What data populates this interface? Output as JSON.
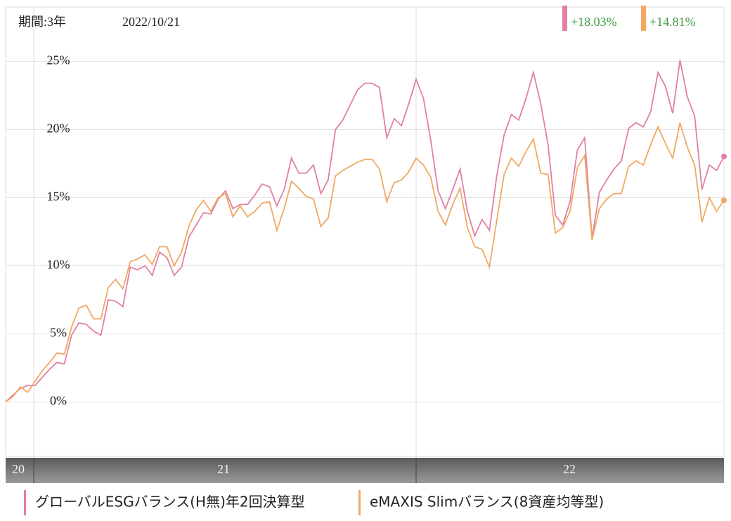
{
  "chart_data": {
    "type": "line",
    "period": "期間:3年",
    "date": "2022/10/21",
    "period_labels": [
      "20",
      "21",
      "22"
    ],
    "ylim": [
      -4,
      29
    ],
    "yticks": [
      {
        "value": 0,
        "label": "0%"
      },
      {
        "value": 5,
        "label": "5%"
      },
      {
        "value": 10,
        "label": "10%"
      },
      {
        "value": 15,
        "label": "15%"
      },
      {
        "value": 20,
        "label": "20%"
      },
      {
        "value": 25,
        "label": "25%"
      }
    ],
    "grid": true,
    "series": [
      {
        "name": "グローバルESGバランス(H無)年2回決算型",
        "color": "#e27fa5",
        "end_label": "+18.03%",
        "values": [
          0,
          0.5,
          1.0,
          1.2,
          1.2,
          1.8,
          2.4,
          2.9,
          2.8,
          4.9,
          5.8,
          5.7,
          5.2,
          4.9,
          7.5,
          7.4,
          7.0,
          9.9,
          9.7,
          10.0,
          9.3,
          11.0,
          10.6,
          9.3,
          9.9,
          12.1,
          13.0,
          13.9,
          13.8,
          14.9,
          15.5,
          14.2,
          14.5,
          14.5,
          15.2,
          16.0,
          15.8,
          14.4,
          15.6,
          17.9,
          16.8,
          16.8,
          17.4,
          15.3,
          16.3,
          20.0,
          20.7,
          21.8,
          22.9,
          23.4,
          23.4,
          23.1,
          19.4,
          20.8,
          20.3,
          21.9,
          23.7,
          22.3,
          19.2,
          15.5,
          14.2,
          15.6,
          17.1,
          14.0,
          12.2,
          13.4,
          12.6,
          16.6,
          19.6,
          21.1,
          20.7,
          22.3,
          24.2,
          21.9,
          18.9,
          13.7,
          13.0,
          14.7,
          18.5,
          19.4,
          12.0,
          15.4,
          16.3,
          17.1,
          17.7,
          20.1,
          20.5,
          20.2,
          21.3,
          24.2,
          23.2,
          21.2,
          25.1,
          22.4,
          21.0,
          15.6,
          17.4,
          17.0,
          18.03
        ]
      },
      {
        "name": "eMAXIS Slimバランス(8資産均等型)",
        "color": "#f0a862",
        "end_label": "+14.81%",
        "values": [
          0,
          0.4,
          1.1,
          0.7,
          1.5,
          2.3,
          2.9,
          3.6,
          3.5,
          5.5,
          6.9,
          7.1,
          6.1,
          6.1,
          8.4,
          9.0,
          8.3,
          10.3,
          10.5,
          10.8,
          10.1,
          11.4,
          11.4,
          10.0,
          11.0,
          12.9,
          14.1,
          14.8,
          14.0,
          15.0,
          15.3,
          13.6,
          14.4,
          13.6,
          14.0,
          14.6,
          14.7,
          12.6,
          14.2,
          16.2,
          15.7,
          15.1,
          14.9,
          12.9,
          13.5,
          16.6,
          17.0,
          17.3,
          17.6,
          17.8,
          17.8,
          17.1,
          14.7,
          16.1,
          16.3,
          16.9,
          17.9,
          17.4,
          16.5,
          14.0,
          13.0,
          14.5,
          15.7,
          12.8,
          11.4,
          11.2,
          9.9,
          13.3,
          16.7,
          17.9,
          17.3,
          18.4,
          19.3,
          16.8,
          16.7,
          12.4,
          12.8,
          14.0,
          17.2,
          18.1,
          11.9,
          14.2,
          14.9,
          15.3,
          15.3,
          17.3,
          17.7,
          17.4,
          18.9,
          20.2,
          19.0,
          17.9,
          20.5,
          18.7,
          17.4,
          13.2,
          15.0,
          14.0,
          14.81
        ]
      }
    ]
  }
}
